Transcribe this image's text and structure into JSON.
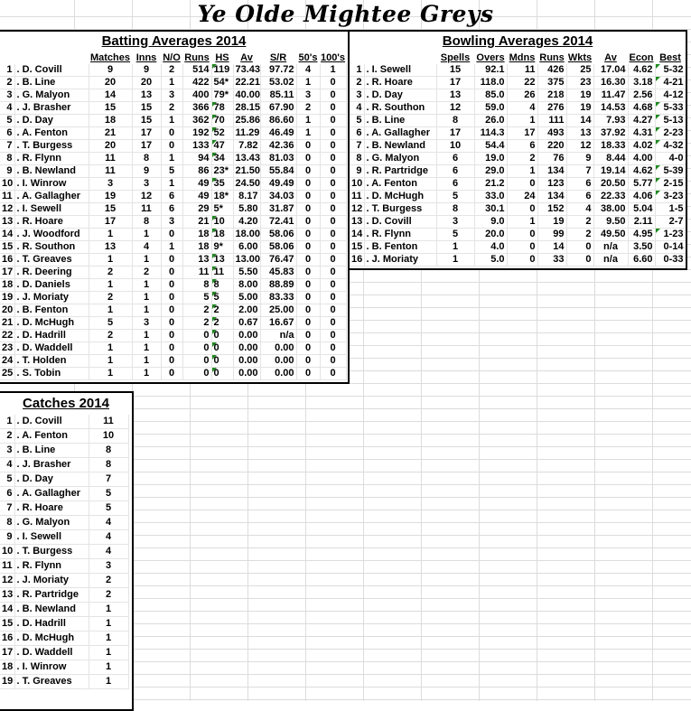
{
  "title": "Ye Olde Mightee Greys",
  "batting": {
    "title": "Batting Averages 2014",
    "headers": [
      "Matches",
      "Inns",
      "N/O",
      "Runs",
      "HS",
      "Av",
      "S/R",
      "50's",
      "100's"
    ],
    "rows": [
      [
        "1",
        "D. Covill",
        "9",
        "9",
        "2",
        "514",
        "119",
        "73.43",
        "97.72",
        "4",
        "1"
      ],
      [
        "2",
        "B. Line",
        "20",
        "20",
        "1",
        "422",
        "54*",
        "22.21",
        "53.02",
        "1",
        "0"
      ],
      [
        "3",
        "G. Malyon",
        "14",
        "13",
        "3",
        "400",
        "79*",
        "40.00",
        "85.11",
        "3",
        "0"
      ],
      [
        "4",
        "J. Brasher",
        "15",
        "15",
        "2",
        "366",
        "78",
        "28.15",
        "67.90",
        "2",
        "0"
      ],
      [
        "5",
        "D. Day",
        "18",
        "15",
        "1",
        "362",
        "70",
        "25.86",
        "86.60",
        "1",
        "0"
      ],
      [
        "6",
        "A. Fenton",
        "21",
        "17",
        "0",
        "192",
        "52",
        "11.29",
        "46.49",
        "1",
        "0"
      ],
      [
        "7",
        "T. Burgess",
        "20",
        "17",
        "0",
        "133",
        "47",
        "7.82",
        "42.36",
        "0",
        "0"
      ],
      [
        "8",
        "R. Flynn",
        "11",
        "8",
        "1",
        "94",
        "34",
        "13.43",
        "81.03",
        "0",
        "0"
      ],
      [
        "9",
        "B. Newland",
        "11",
        "9",
        "5",
        "86",
        "23*",
        "21.50",
        "55.84",
        "0",
        "0"
      ],
      [
        "10",
        "I. Winrow",
        "3",
        "3",
        "1",
        "49",
        "35",
        "24.50",
        "49.49",
        "0",
        "0"
      ],
      [
        "11",
        "A. Gallagher",
        "19",
        "12",
        "6",
        "49",
        "18*",
        "8.17",
        "34.03",
        "0",
        "0"
      ],
      [
        "12",
        "I. Sewell",
        "15",
        "11",
        "6",
        "29",
        "5*",
        "5.80",
        "31.87",
        "0",
        "0"
      ],
      [
        "13",
        "R. Hoare",
        "17",
        "8",
        "3",
        "21",
        "10",
        "4.20",
        "72.41",
        "0",
        "0"
      ],
      [
        "14",
        "J. Woodford",
        "1",
        "1",
        "0",
        "18",
        "18",
        "18.00",
        "58.06",
        "0",
        "0"
      ],
      [
        "15",
        "R. Southon",
        "13",
        "4",
        "1",
        "18",
        "9*",
        "6.00",
        "58.06",
        "0",
        "0"
      ],
      [
        "16",
        "T. Greaves",
        "1",
        "1",
        "0",
        "13",
        "13",
        "13.00",
        "76.47",
        "0",
        "0"
      ],
      [
        "17",
        "R. Deering",
        "2",
        "2",
        "0",
        "11",
        "11",
        "5.50",
        "45.83",
        "0",
        "0"
      ],
      [
        "18",
        "D. Daniels",
        "1",
        "1",
        "0",
        "8",
        "8",
        "8.00",
        "88.89",
        "0",
        "0"
      ],
      [
        "19",
        "J. Moriaty",
        "2",
        "1",
        "0",
        "5",
        "5",
        "5.00",
        "83.33",
        "0",
        "0"
      ],
      [
        "20",
        "B. Fenton",
        "1",
        "1",
        "0",
        "2",
        "2",
        "2.00",
        "25.00",
        "0",
        "0"
      ],
      [
        "21",
        "D. McHugh",
        "5",
        "3",
        "0",
        "2",
        "2",
        "0.67",
        "16.67",
        "0",
        "0"
      ],
      [
        "22",
        "D. Hadrill",
        "2",
        "1",
        "0",
        "0",
        "0",
        "0.00",
        "n/a",
        "0",
        "0"
      ],
      [
        "23",
        "D. Waddell",
        "1",
        "1",
        "0",
        "0",
        "0",
        "0.00",
        "0.00",
        "0",
        "0"
      ],
      [
        "24",
        "T. Holden",
        "1",
        "1",
        "0",
        "0",
        "0",
        "0.00",
        "0.00",
        "0",
        "0"
      ],
      [
        "25",
        "S. Tobin",
        "1",
        "1",
        "0",
        "0",
        "0",
        "0.00",
        "0.00",
        "0",
        "0"
      ]
    ]
  },
  "bowling": {
    "title": "Bowling Averages 2014",
    "headers": [
      "Spells",
      "Overs",
      "Mdns",
      "Runs",
      "Wkts",
      "Av",
      "Econ",
      "Best"
    ],
    "rows": [
      [
        "1",
        "I. Sewell",
        "15",
        "92.1",
        "11",
        "426",
        "25",
        "17.04",
        "4.62",
        "5-32"
      ],
      [
        "2",
        "R. Hoare",
        "17",
        "118.0",
        "22",
        "375",
        "23",
        "16.30",
        "3.18",
        "4-21"
      ],
      [
        "3",
        "D. Day",
        "13",
        "85.0",
        "26",
        "218",
        "19",
        "11.47",
        "2.56",
        "4-12"
      ],
      [
        "4",
        "R. Southon",
        "12",
        "59.0",
        "4",
        "276",
        "19",
        "14.53",
        "4.68",
        "5-33"
      ],
      [
        "5",
        "B. Line",
        "8",
        "26.0",
        "1",
        "111",
        "14",
        "7.93",
        "4.27",
        "5-13"
      ],
      [
        "6",
        "A. Gallagher",
        "17",
        "114.3",
        "17",
        "493",
        "13",
        "37.92",
        "4.31",
        "2-23"
      ],
      [
        "7",
        "B. Newland",
        "10",
        "54.4",
        "6",
        "220",
        "12",
        "18.33",
        "4.02",
        "4-32"
      ],
      [
        "8",
        "G. Malyon",
        "6",
        "19.0",
        "2",
        "76",
        "9",
        "8.44",
        "4.00",
        "4-0"
      ],
      [
        "9",
        "R. Partridge",
        "6",
        "29.0",
        "1",
        "134",
        "7",
        "19.14",
        "4.62",
        "5-39"
      ],
      [
        "10",
        "A. Fenton",
        "6",
        "21.2",
        "0",
        "123",
        "6",
        "20.50",
        "5.77",
        "2-15"
      ],
      [
        "11",
        "D. McHugh",
        "5",
        "33.0",
        "24",
        "134",
        "6",
        "22.33",
        "4.06",
        "3-23"
      ],
      [
        "12",
        "T. Burgess",
        "8",
        "30.1",
        "0",
        "152",
        "4",
        "38.00",
        "5.04",
        "1-5"
      ],
      [
        "13",
        "D. Covill",
        "3",
        "9.0",
        "1",
        "19",
        "2",
        "9.50",
        "2.11",
        "2-7"
      ],
      [
        "14",
        "R. Flynn",
        "5",
        "20.0",
        "0",
        "99",
        "2",
        "49.50",
        "4.95",
        "1-23"
      ],
      [
        "15",
        "B. Fenton",
        "1",
        "4.0",
        "0",
        "14",
        "0",
        "n/a",
        "3.50",
        "0-14"
      ],
      [
        "16",
        "J. Moriaty",
        "1",
        "5.0",
        "0",
        "33",
        "0",
        "n/a",
        "6.60",
        "0-33"
      ]
    ],
    "best_flags": [
      true,
      true,
      false,
      true,
      true,
      true,
      true,
      false,
      true,
      true,
      true,
      false,
      false,
      true,
      false,
      false
    ]
  },
  "catches": {
    "title": "Catches 2014",
    "rows": [
      [
        "1",
        "D. Covill",
        "11"
      ],
      [
        "2",
        "A. Fenton",
        "10"
      ],
      [
        "3",
        "B. Line",
        "8"
      ],
      [
        "4",
        "J. Brasher",
        "8"
      ],
      [
        "5",
        "D. Day",
        "7"
      ],
      [
        "6",
        "A. Gallagher",
        "5"
      ],
      [
        "7",
        "R. Hoare",
        "5"
      ],
      [
        "8",
        "G. Malyon",
        "4"
      ],
      [
        "9",
        "I. Sewell",
        "4"
      ],
      [
        "10",
        "T. Burgess",
        "4"
      ],
      [
        "11",
        "R. Flynn",
        "3"
      ],
      [
        "12",
        "J. Moriaty",
        "2"
      ],
      [
        "13",
        "R. Partridge",
        "2"
      ],
      [
        "14",
        "B. Newland",
        "1"
      ],
      [
        "15",
        "D. Hadrill",
        "1"
      ],
      [
        "16",
        "D. McHugh",
        "1"
      ],
      [
        "17",
        "D. Waddell",
        "1"
      ],
      [
        "18",
        "I. Winrow",
        "1"
      ],
      [
        "19",
        "T. Greaves",
        "1"
      ]
    ]
  },
  "colors": {
    "indicator": "#1f8a1f",
    "gridline": "#dcdcdc"
  }
}
